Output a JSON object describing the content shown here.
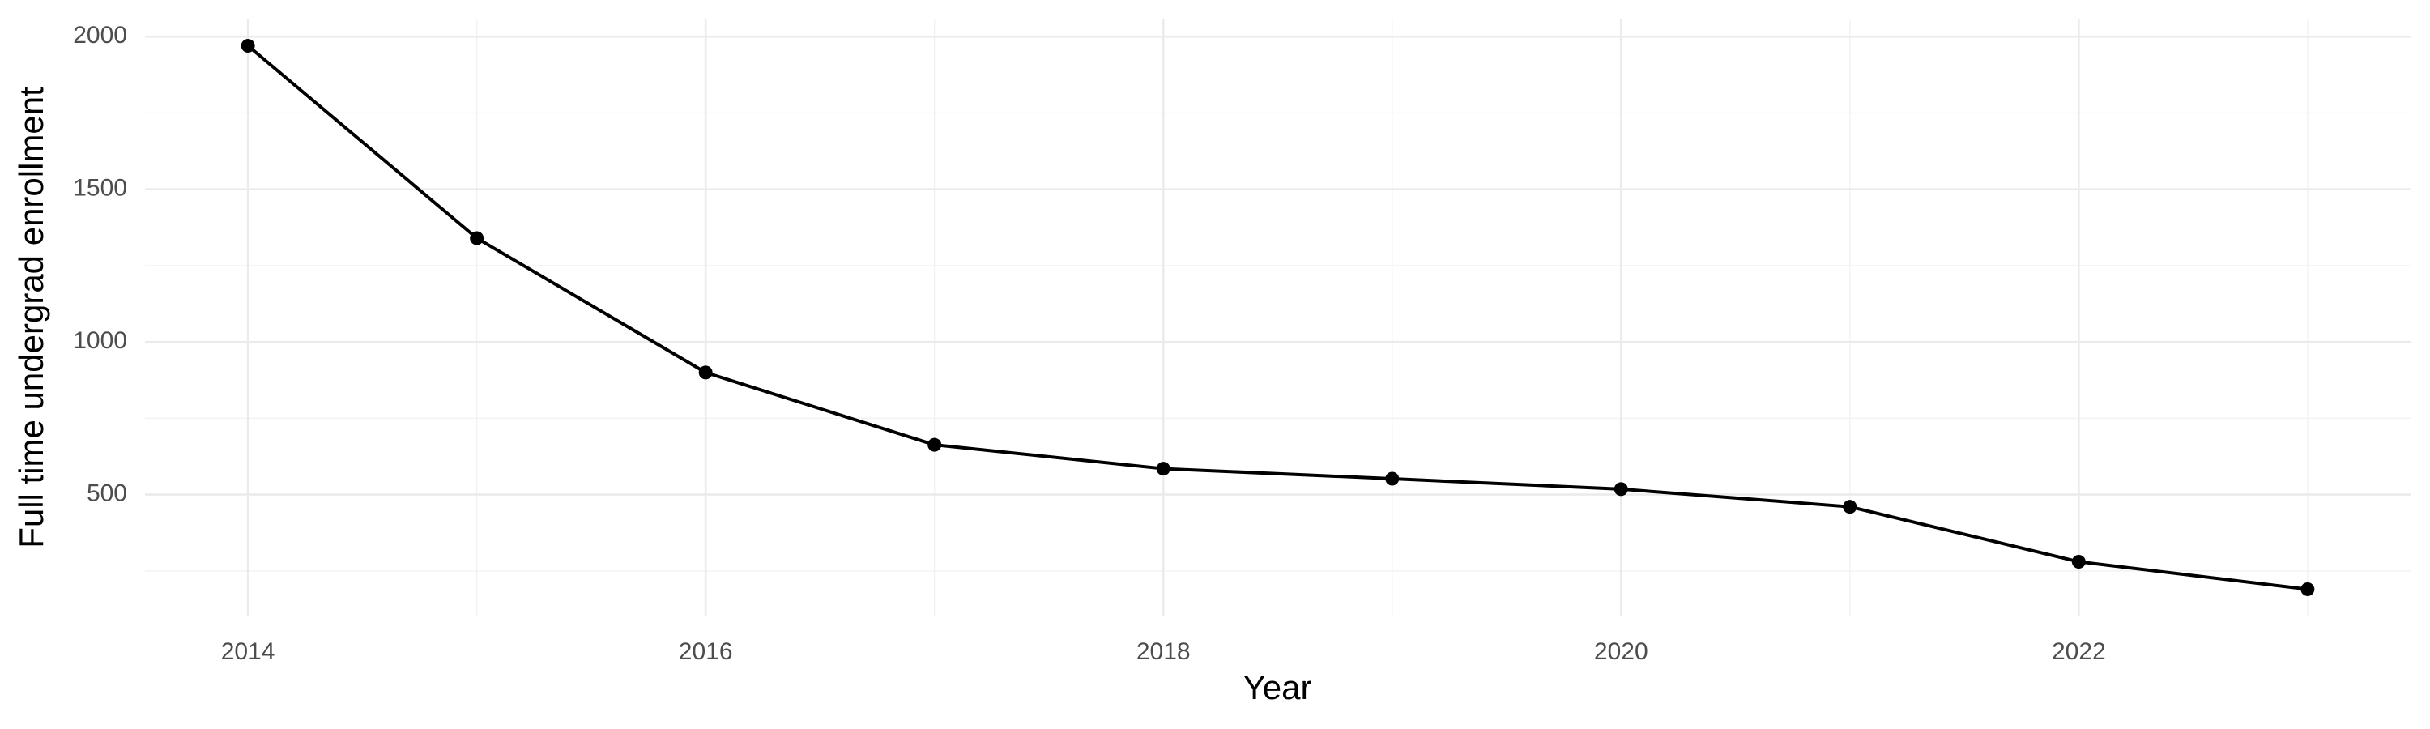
{
  "chart_data": {
    "type": "line",
    "x": [
      2014,
      2015,
      2016,
      2017,
      2018,
      2019,
      2020,
      2021,
      2022,
      2023
    ],
    "values": [
      1970,
      1340,
      900,
      663,
      585,
      552,
      518,
      460,
      280,
      190
    ],
    "color": "#000000",
    "x_label": "Year",
    "y_label": "Full time undergrad enrollment",
    "xlim": [
      2013.55,
      2023.45
    ],
    "xticks": [
      2014,
      2016,
      2018,
      2020,
      2022
    ],
    "ylim": [
      101,
      2059
    ],
    "yticks": [
      500,
      1000,
      1500,
      2000
    ],
    "grid": true,
    "markers": true
  }
}
